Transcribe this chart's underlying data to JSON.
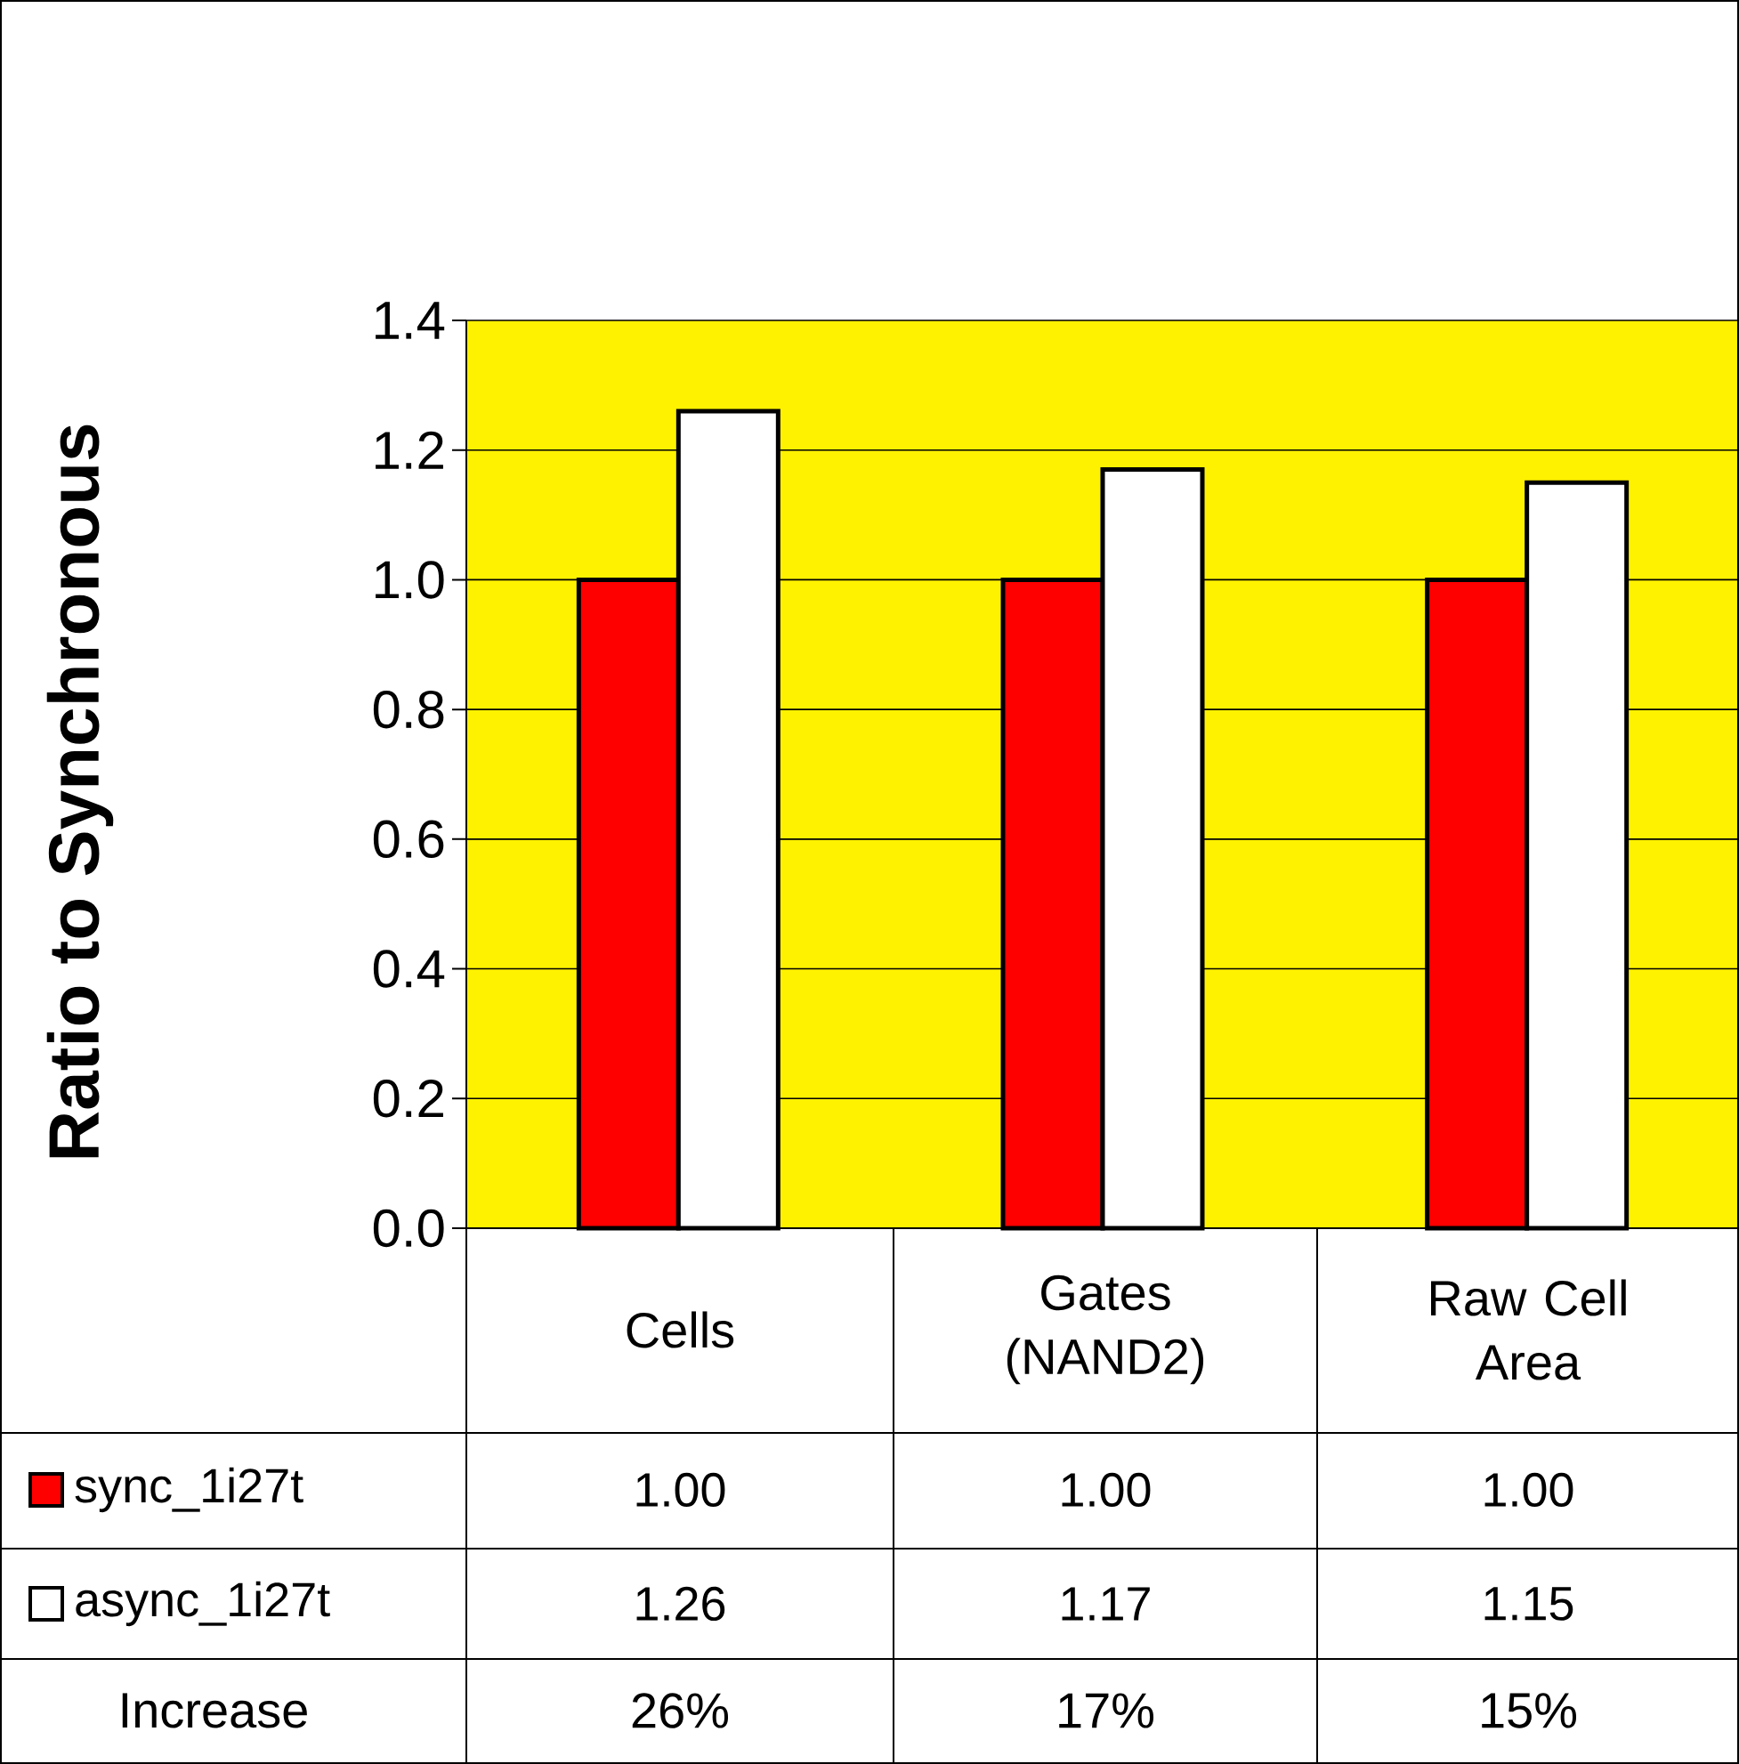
{
  "chart_data": {
    "type": "bar",
    "ylabel": "Ratio to Synchronous",
    "categories": [
      "Cells",
      "Gates (NAND2)",
      "Raw Cell Area"
    ],
    "series": [
      {
        "name": "sync_1i27t",
        "color": "#ff0000",
        "values": [
          1.0,
          1.0,
          1.0
        ],
        "value_labels": [
          "1.00",
          "1.00",
          "1.00"
        ]
      },
      {
        "name": "async_1i27t",
        "color": "#ffffff",
        "values": [
          1.26,
          1.17,
          1.15
        ],
        "value_labels": [
          "1.26",
          "1.17",
          "1.15"
        ]
      }
    ],
    "ylim": [
      0,
      1.4
    ],
    "yticks": [
      {
        "value": 0,
        "label": "0.0"
      },
      0.2,
      0.4,
      0.6,
      0.8,
      {
        "value": 1,
        "label": "1.0"
      },
      1.2,
      1.4
    ],
    "grid": "y",
    "legend": "bottom",
    "annotations": [
      "Increase",
      "26%",
      "17%",
      "15%"
    ]
  }
}
